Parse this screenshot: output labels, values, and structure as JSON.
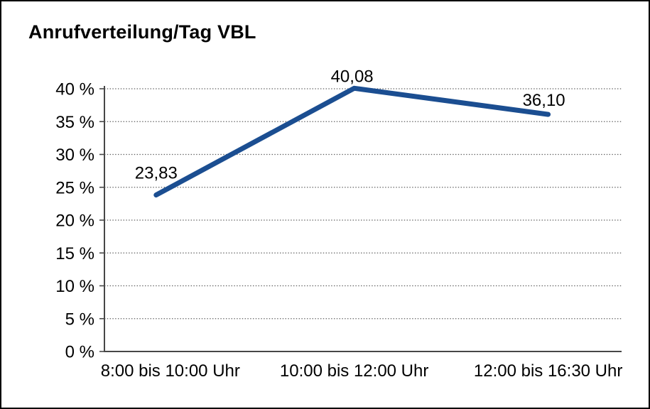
{
  "chart_data": {
    "type": "line",
    "title": "Anrufverteilung/Tag VBL",
    "categories": [
      "8:00 bis 10:00 Uhr",
      "10:00 bis 12:00 Uhr",
      "12:00 bis 16:30 Uhr"
    ],
    "series": [
      {
        "name": "Anrufverteilung",
        "values": [
          23.83,
          40.08,
          36.1
        ],
        "data_labels": [
          "23,83",
          "40,08",
          "36,10"
        ]
      }
    ],
    "xlabel": "",
    "ylabel": "",
    "ylim": [
      0,
      40
    ],
    "ytick_step": 5,
    "ytick_labels": [
      "0 %",
      "5 %",
      "10 %",
      "15 %",
      "20 %",
      "25 %",
      "30 %",
      "35 %",
      "40 %"
    ],
    "grid": "horizontal-dotted",
    "legend": "none",
    "colors": {
      "line": "#1b4e91",
      "axis": "#474747",
      "gridline": "#5e5e5e",
      "text": "#000000",
      "background": "#ffffff",
      "border": "#000000"
    }
  }
}
